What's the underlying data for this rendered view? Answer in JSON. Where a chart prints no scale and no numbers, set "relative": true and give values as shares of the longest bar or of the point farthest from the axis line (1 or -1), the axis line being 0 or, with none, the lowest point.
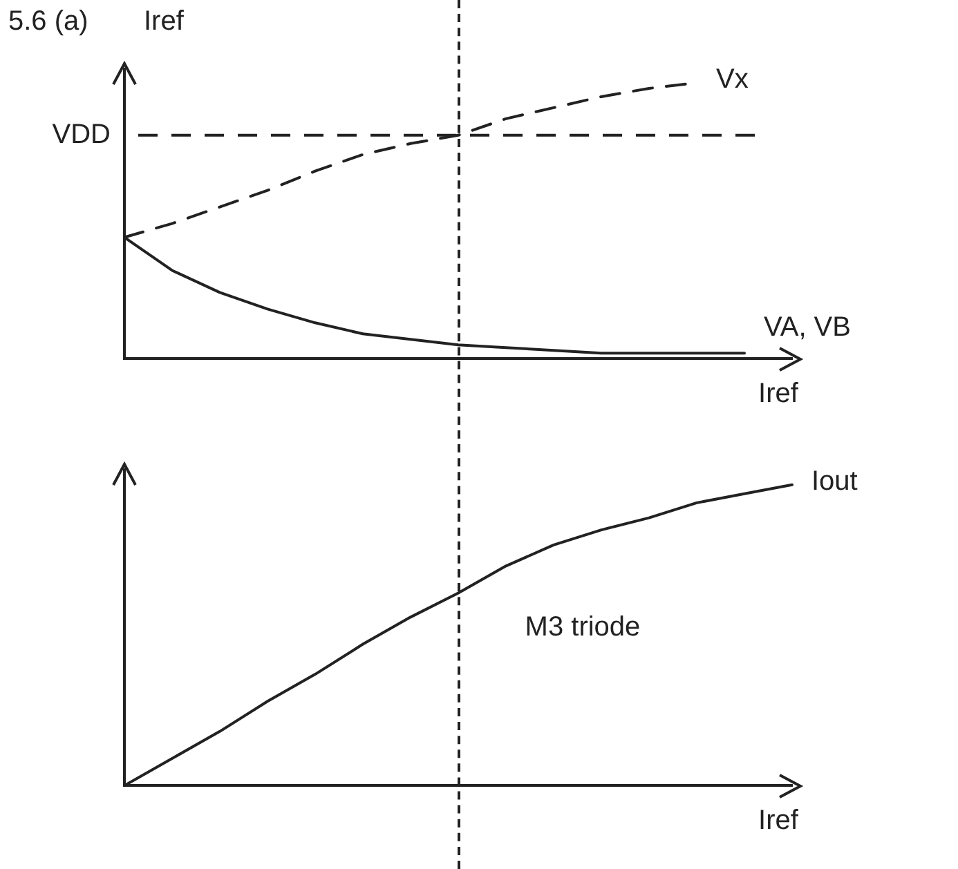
{
  "chart_data": [
    {
      "type": "line",
      "title": "5.6 (a)",
      "ylabel": "Iref",
      "xlabel": "Iref",
      "relative": true,
      "marker": "none",
      "legend": false,
      "grid": false,
      "categories": [
        null,
        null,
        null,
        null,
        null,
        null,
        null,
        null,
        null,
        null,
        null,
        null,
        null,
        null,
        null
      ],
      "series": [
        {
          "name": "Vx",
          "color": "#222222",
          "line_style": "dashed",
          "values": [
            0.44,
            0.49,
            0.55,
            0.61,
            0.68,
            0.74,
            0.78,
            0.81,
            0.87,
            0.91,
            0.95,
            0.98,
            1.0,
            null,
            null
          ]
        },
        {
          "name": "VA, VB",
          "color": "#222222",
          "line_style": "solid",
          "values": [
            0.44,
            0.32,
            0.24,
            0.18,
            0.13,
            0.09,
            0.07,
            0.05,
            0.04,
            0.03,
            0.02,
            0.02,
            0.02,
            0.02,
            null
          ]
        }
      ],
      "ref_lines": [
        {
          "axis": "y",
          "value": 0.81,
          "label": "VDD",
          "line_style": "dashed",
          "color": "#222222"
        }
      ]
    },
    {
      "type": "line",
      "xlabel": "Iref",
      "relative": true,
      "marker": "none",
      "legend": false,
      "grid": false,
      "categories": [
        null,
        null,
        null,
        null,
        null,
        null,
        null,
        null,
        null,
        null,
        null,
        null,
        null,
        null,
        null
      ],
      "series": [
        {
          "name": "Iout",
          "color": "#222222",
          "line_style": "solid",
          "values": [
            0,
            0.09,
            0.18,
            0.28,
            0.37,
            0.47,
            0.56,
            0.64,
            0.73,
            0.8,
            0.85,
            0.89,
            0.94,
            0.97,
            1.0
          ]
        }
      ],
      "annotations": [
        "M3 triode"
      ]
    }
  ]
}
